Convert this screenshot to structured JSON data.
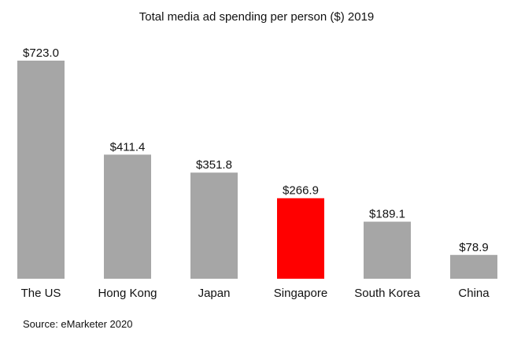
{
  "chart_data": {
    "type": "bar",
    "title": "Total media ad spending per person ($) 2019",
    "xlabel": "",
    "ylabel": "",
    "categories": [
      "The US",
      "Hong Kong",
      "Japan",
      "Singapore",
      "South Korea",
      "China"
    ],
    "values": [
      723.0,
      411.4,
      351.8,
      266.9,
      189.1,
      78.9
    ],
    "value_labels": [
      "$723.0",
      "$411.4",
      "$351.8",
      "$266.9",
      "$189.1",
      "$78.9"
    ],
    "ylim": [
      0,
      723.0
    ],
    "grid": false,
    "legend": "none",
    "colors": {
      "default_bar": "#a6a6a6",
      "highlight_bar": "#ff0000",
      "text": "#111111"
    },
    "highlight_category": "Singapore"
  },
  "source": "Source: eMarketer 2020"
}
